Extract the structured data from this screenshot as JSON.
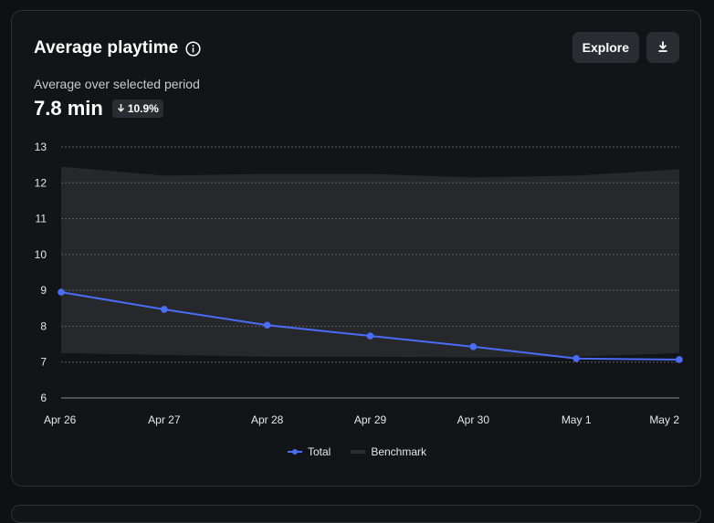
{
  "card": {
    "title": "Average playtime",
    "subtitle": "Average over selected period",
    "metric_value": "7.8 min",
    "change": "10.9%",
    "change_direction": "down",
    "explore_label": "Explore",
    "icons": {
      "info": "info-icon",
      "download": "download-icon",
      "change": "arrow-down-icon"
    }
  },
  "colors": {
    "total": "#4a6cf7",
    "benchmark_band": "#27282c",
    "grid": "#5a5c63",
    "axis_text": "#e6e7ea"
  },
  "chart_data": {
    "type": "line",
    "title": "",
    "xlabel": "",
    "ylabel": "",
    "categories": [
      "Apr 26",
      "Apr 27",
      "Apr 28",
      "Apr 29",
      "Apr 30",
      "May 1",
      "May 2"
    ],
    "ylim": [
      6,
      13
    ],
    "yticks": [
      6,
      7,
      8,
      9,
      10,
      11,
      12,
      13
    ],
    "grid": true,
    "legend": "bottom-center",
    "series": [
      {
        "name": "Total",
        "values": [
          8.95,
          8.47,
          8.03,
          7.73,
          7.43,
          7.1,
          7.07
        ]
      }
    ],
    "band": {
      "name": "Benchmark",
      "upper": [
        12.45,
        12.2,
        12.25,
        12.25,
        12.15,
        12.2,
        12.38
      ],
      "lower": [
        7.25,
        7.2,
        7.15,
        7.15,
        7.13,
        7.15,
        7.25
      ]
    }
  }
}
